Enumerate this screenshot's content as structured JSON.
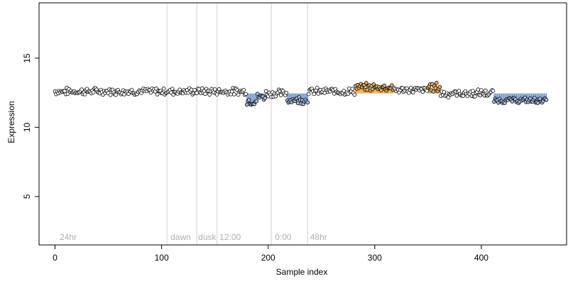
{
  "chart_data": {
    "type": "scatter",
    "xlabel": "Sample index",
    "ylabel": "Expression",
    "xlim": [
      -15,
      480
    ],
    "ylim": [
      1.5,
      19
    ],
    "xticks": [
      0,
      100,
      200,
      300,
      400
    ],
    "yticks": [
      5,
      10,
      15
    ],
    "baseline": 12.45,
    "vlines": [
      105,
      133,
      152,
      203,
      237
    ],
    "annotations": [
      {
        "text": "24hr",
        "x": 3
      },
      {
        "text": "dawn",
        "x": 107
      },
      {
        "text": "dusk",
        "x": 133
      },
      {
        "text": "12:00",
        "x": 153
      },
      {
        "text": "0:00",
        "x": 205
      },
      {
        "text": "48hr",
        "x": 238
      }
    ],
    "colors": {
      "axis": "#000000",
      "vline": "#d3d3d3",
      "point_default": "#ffffff",
      "point_low": "#aabfe0",
      "point_high": "#e8b066",
      "bar_low": "#6f93cc",
      "bar_high": "#f0a030",
      "point_edge": "#000000"
    },
    "segments": [
      {
        "start": 0,
        "end": 180,
        "mean": 12.6,
        "amp": 0.22,
        "color": "default"
      },
      {
        "start": 180,
        "end": 190,
        "mean": 11.9,
        "amp": 0.25,
        "color": "low"
      },
      {
        "start": 190,
        "end": 198,
        "mean": 12.2,
        "amp": 0.25,
        "color": "low"
      },
      {
        "start": 198,
        "end": 218,
        "mean": 12.45,
        "amp": 0.25,
        "color": "default"
      },
      {
        "start": 218,
        "end": 238,
        "mean": 12.0,
        "amp": 0.25,
        "color": "low"
      },
      {
        "start": 238,
        "end": 282,
        "mean": 12.6,
        "amp": 0.22,
        "color": "default"
      },
      {
        "start": 282,
        "end": 318,
        "mean": 12.9,
        "amp": 0.25,
        "color": "high"
      },
      {
        "start": 318,
        "end": 350,
        "mean": 12.7,
        "amp": 0.2,
        "color": "default"
      },
      {
        "start": 350,
        "end": 362,
        "mean": 12.9,
        "amp": 0.3,
        "color": "high"
      },
      {
        "start": 362,
        "end": 412,
        "mean": 12.45,
        "amp": 0.25,
        "color": "default"
      },
      {
        "start": 412,
        "end": 462,
        "mean": 11.95,
        "amp": 0.18,
        "color": "low"
      }
    ],
    "n_points": 462
  }
}
